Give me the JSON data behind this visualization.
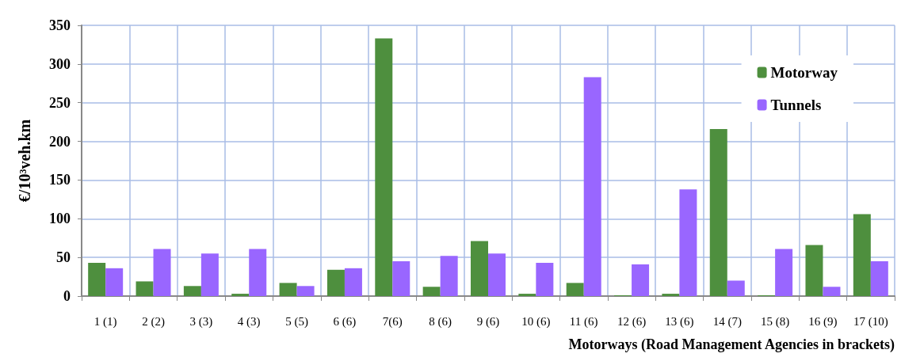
{
  "chart_data": {
    "type": "bar",
    "xlabel": "Motorways (Road Management Agencies in brackets)",
    "ylabel": "€/10³veh.km",
    "categories": [
      "1 (1)",
      "2 (2)",
      "3 (3)",
      "4 (3)",
      "5 (5)",
      "6 (6)",
      "7(6)",
      "8 (6)",
      "9 (6)",
      "10 (6)",
      "11 (6)",
      "12 (6)",
      "13 (6)",
      "14 (7)",
      "15 (8)",
      "16 (9)",
      "17 (10)"
    ],
    "series": [
      {
        "name": "Motorway",
        "color": "#4e8f3e",
        "values": [
          43,
          19,
          13,
          3,
          17,
          34,
          333,
          12,
          71,
          3,
          17,
          1,
          3,
          216,
          1,
          66,
          106
        ]
      },
      {
        "name": "Tunnels",
        "color": "#9966ff",
        "values": [
          36,
          61,
          55,
          61,
          13,
          36,
          45,
          52,
          55,
          43,
          283,
          41,
          138,
          20,
          61,
          12,
          45
        ]
      }
    ],
    "ylim": [
      0,
      350
    ],
    "yticks": [
      0,
      50,
      100,
      150,
      200,
      250,
      300,
      350
    ],
    "grid": true,
    "legend": "top right"
  }
}
